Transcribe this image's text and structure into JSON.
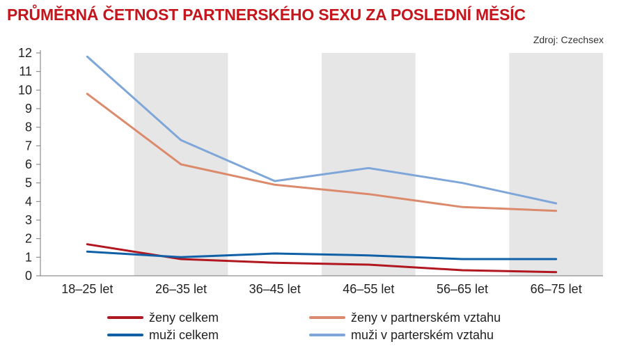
{
  "header": {
    "title": "PRŮMĚRNÁ ČETNOST PARTNERSKÉHO SEXU ZA POSLEDNÍ MĚSÍC",
    "source": "Zdroj: Czechsex"
  },
  "chart_data": {
    "type": "line",
    "title": "PRŮMĚRNÁ ČETNOST PARTNERSKÉHO SEXU ZA POSLEDNÍ MĚSÍC",
    "categories": [
      "18–25 let",
      "26–35 let",
      "36–45 let",
      "46–55 let",
      "56–65 let",
      "66–75 let"
    ],
    "ylim": [
      0,
      12
    ],
    "yticks": [
      0,
      1,
      2,
      3,
      4,
      5,
      6,
      7,
      8,
      9,
      10,
      11,
      12
    ],
    "grid": false,
    "shaded_bands": [
      "26–35 let",
      "46–55 let",
      "66–75 let"
    ],
    "legend_position": "bottom",
    "series": [
      {
        "name": "ženy celkem",
        "color": "#b0171f",
        "values": [
          1.7,
          0.9,
          0.7,
          0.6,
          0.3,
          0.2
        ]
      },
      {
        "name": "muži celkem",
        "color": "#1060a8",
        "values": [
          1.3,
          1.0,
          1.2,
          1.1,
          0.9,
          0.9
        ]
      },
      {
        "name": "ženy v partnerském vztahu",
        "color": "#dc8a6c",
        "values": [
          9.8,
          6.0,
          4.9,
          4.4,
          3.7,
          3.5
        ]
      },
      {
        "name": "muži v parterském vztahu",
        "color": "#7ea6d8",
        "values": [
          11.8,
          7.3,
          5.1,
          5.8,
          5.0,
          3.9
        ]
      }
    ]
  }
}
